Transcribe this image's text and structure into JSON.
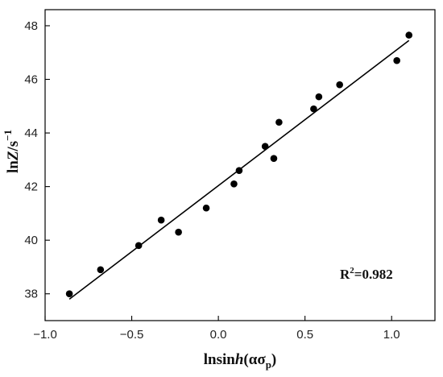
{
  "chart_data": {
    "type": "scatter",
    "title": "",
    "xlabel": {
      "prefix": "lnsin",
      "italic": "h",
      "open": "(ασ",
      "sub": "p",
      "close": ")"
    },
    "ylabel": {
      "prefix": "ln",
      "italic": "Z",
      "rest": "/s",
      "sup": "−1"
    },
    "xlim": [
      -1.0,
      1.25
    ],
    "ylim": [
      37.0,
      48.6
    ],
    "x_ticks": [
      {
        "value": -1.0,
        "label": "−1.0"
      },
      {
        "value": -0.5,
        "label": "−0.5"
      },
      {
        "value": 0.0,
        "label": "0.0"
      },
      {
        "value": 0.5,
        "label": "0.5"
      },
      {
        "value": 1.0,
        "label": "1.0"
      }
    ],
    "y_ticks": [
      {
        "value": 38,
        "label": "38"
      },
      {
        "value": 40,
        "label": "40"
      },
      {
        "value": 42,
        "label": "42"
      },
      {
        "value": 44,
        "label": "44"
      },
      {
        "value": 46,
        "label": "46"
      },
      {
        "value": 48,
        "label": "48"
      }
    ],
    "grid": false,
    "series": [
      {
        "points": [
          {
            "x": -0.86,
            "y": 38.0
          },
          {
            "x": -0.68,
            "y": 38.9
          },
          {
            "x": -0.46,
            "y": 39.8
          },
          {
            "x": -0.33,
            "y": 40.75
          },
          {
            "x": -0.23,
            "y": 40.3
          },
          {
            "x": -0.07,
            "y": 41.2
          },
          {
            "x": 0.09,
            "y": 42.1
          },
          {
            "x": 0.12,
            "y": 42.6
          },
          {
            "x": 0.27,
            "y": 43.5
          },
          {
            "x": 0.32,
            "y": 43.05
          },
          {
            "x": 0.35,
            "y": 44.4
          },
          {
            "x": 0.55,
            "y": 44.9
          },
          {
            "x": 0.58,
            "y": 45.35
          },
          {
            "x": 0.7,
            "y": 45.8
          },
          {
            "x": 1.03,
            "y": 46.7
          },
          {
            "x": 1.1,
            "y": 47.65
          }
        ],
        "marker_color": "#000000"
      }
    ],
    "fit_line": {
      "x": [
        -0.86,
        1.1
      ],
      "y": [
        37.8,
        47.45
      ],
      "color": "#000000"
    },
    "annotation": {
      "prefix": "R",
      "sup": "2",
      "rest": "=0.982"
    }
  }
}
